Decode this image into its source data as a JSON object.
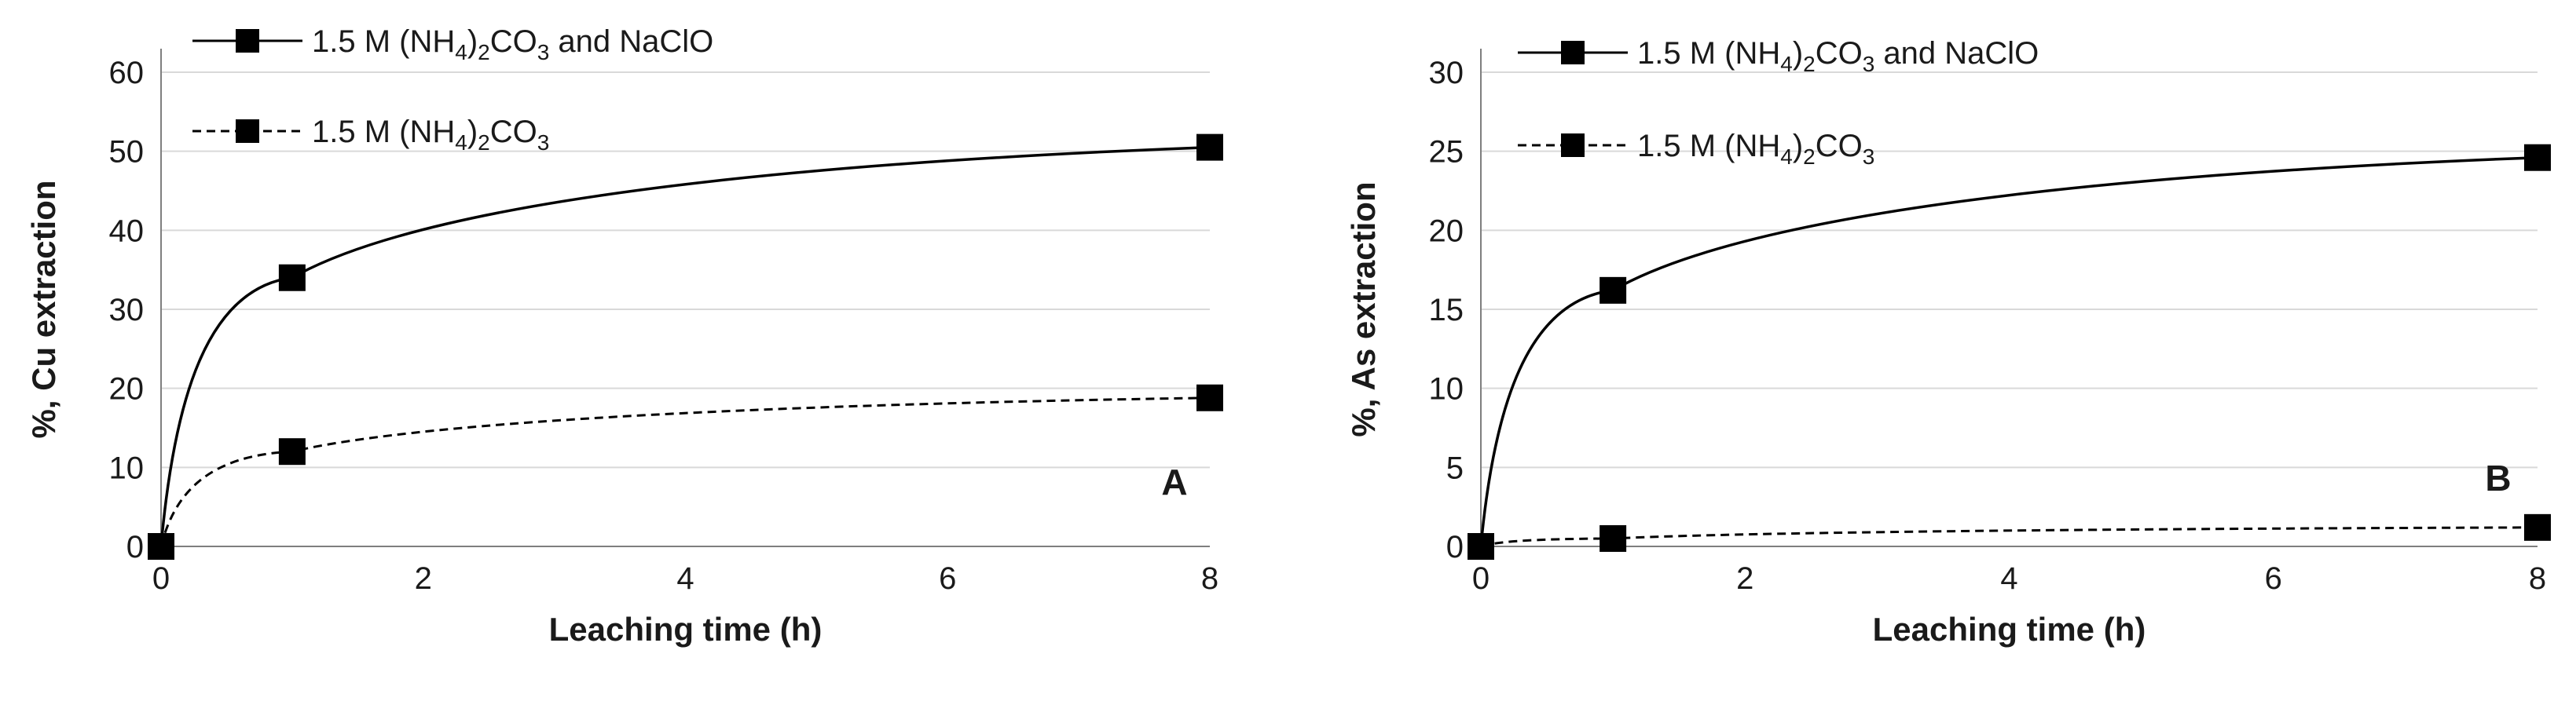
{
  "chart_data": [
    {
      "type": "line",
      "panel_label": "A",
      "xlabel": "Leaching time (h)",
      "ylabel": "%, Cu extraction",
      "xlim": [
        0,
        8
      ],
      "ylim": [
        0,
        60
      ],
      "xticks": [
        0,
        2,
        4,
        6,
        8
      ],
      "yticks": [
        0,
        10,
        20,
        30,
        40,
        50,
        60
      ],
      "grid": "horizontal",
      "legend_position": "top-left",
      "series": [
        {
          "label_main": "1.5 M (NH",
          "label_sub1": "4",
          "label_mid": ")",
          "label_sub2": "2",
          "label_end": "CO",
          "label_sub3": "3",
          "label_tail": " and NaClO",
          "line_style": "solid",
          "x": [
            0,
            1,
            8
          ],
          "y": [
            0,
            34,
            50.5
          ]
        },
        {
          "label_main": "1.5 M (NH",
          "label_sub1": "4",
          "label_mid": ")",
          "label_sub2": "2",
          "label_end": "CO",
          "label_sub3": "3",
          "label_tail": "",
          "line_style": "dashed",
          "x": [
            0,
            1,
            8
          ],
          "y": [
            0,
            12,
            18.8
          ]
        }
      ]
    },
    {
      "type": "line",
      "panel_label": "B",
      "xlabel": "Leaching time (h)",
      "ylabel": "%, As extraction",
      "xlim": [
        0,
        8
      ],
      "ylim": [
        0,
        30
      ],
      "xticks": [
        0,
        2,
        4,
        6,
        8
      ],
      "yticks": [
        0,
        5,
        10,
        15,
        20,
        25,
        30
      ],
      "grid": "horizontal",
      "legend_position": "top-left",
      "series": [
        {
          "label_main": "1.5 M (NH",
          "label_sub1": "4",
          "label_mid": ")",
          "label_sub2": "2",
          "label_end": "CO",
          "label_sub3": "3",
          "label_tail": " and NaClO",
          "line_style": "solid",
          "x": [
            0,
            1,
            8
          ],
          "y": [
            0,
            16.2,
            24.6
          ]
        },
        {
          "label_main": "1.5 M (NH",
          "label_sub1": "4",
          "label_mid": ")",
          "label_sub2": "2",
          "label_end": "CO",
          "label_sub3": "3",
          "label_tail": "",
          "line_style": "dashed",
          "x": [
            0,
            1,
            8
          ],
          "y": [
            0,
            0.5,
            1.2
          ]
        }
      ]
    }
  ],
  "colors": {
    "marks": "#000000",
    "grid": "#d9d9d9",
    "axis": "#7f7f7f"
  }
}
